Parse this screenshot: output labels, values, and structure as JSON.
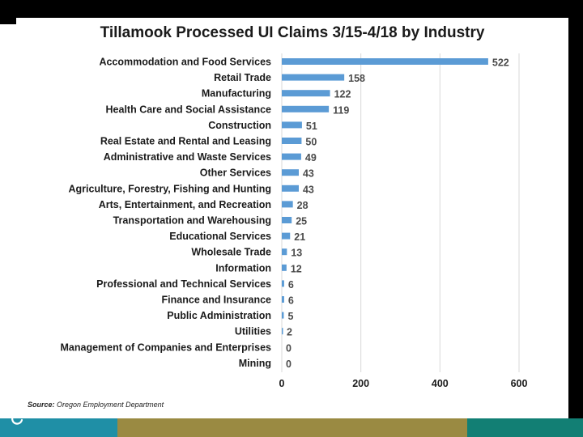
{
  "chart_data": {
    "type": "bar",
    "orientation": "horizontal",
    "title": "Tillamook Processed UI Claims 3/15-4/18 by Industry",
    "xlabel": "",
    "ylabel": "",
    "xlim": [
      0,
      600
    ],
    "xticks": [
      0,
      200,
      400,
      600
    ],
    "grid": true,
    "legend": "none",
    "bar_color": "#5b9bd5",
    "categories": [
      "Accommodation and Food Services",
      "Retail Trade",
      "Manufacturing",
      "Health Care and Social Assistance",
      "Construction",
      "Real Estate and Rental and Leasing",
      "Administrative and Waste Services",
      "Other Services",
      "Agriculture, Forestry, Fishing and Hunting",
      "Arts, Entertainment, and Recreation",
      "Transportation and Warehousing",
      "Educational Services",
      "Wholesale Trade",
      "Information",
      "Professional and Technical Services",
      "Finance and Insurance",
      "Public Administration",
      "Utilities",
      "Management of Companies and Enterprises",
      "Mining"
    ],
    "values": [
      522,
      158,
      122,
      119,
      51,
      50,
      49,
      43,
      43,
      28,
      25,
      21,
      13,
      12,
      6,
      6,
      5,
      2,
      0,
      0
    ]
  },
  "source": {
    "label": "Source:",
    "value": "Oregon Employment Department"
  },
  "colors": {
    "footer_teal": "#1f8fa6",
    "footer_olive": "#9a8a42",
    "footer_green": "#127f74"
  }
}
